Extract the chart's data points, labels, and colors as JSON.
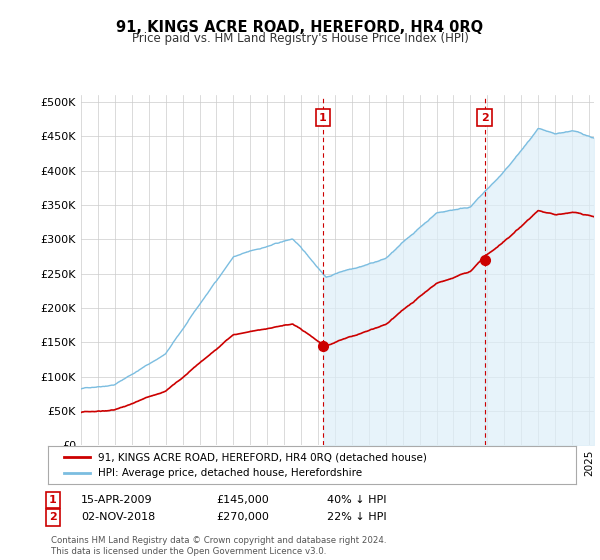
{
  "title": "91, KINGS ACRE ROAD, HEREFORD, HR4 0RQ",
  "subtitle": "Price paid vs. HM Land Registry's House Price Index (HPI)",
  "ylabel_ticks": [
    "£0",
    "£50K",
    "£100K",
    "£150K",
    "£200K",
    "£250K",
    "£300K",
    "£350K",
    "£400K",
    "£450K",
    "£500K"
  ],
  "ytick_values": [
    0,
    50000,
    100000,
    150000,
    200000,
    250000,
    300000,
    350000,
    400000,
    450000,
    500000
  ],
  "ylim": [
    0,
    510000
  ],
  "xlim_start": 1995.0,
  "xlim_end": 2025.3,
  "hpi_color": "#7bbde0",
  "hpi_fill_color": "#ddeef8",
  "price_color": "#cc0000",
  "annotation_color": "#cc0000",
  "sale1_x": 2009.29,
  "sale1_y": 145000,
  "sale1_label": "1",
  "sale2_x": 2018.84,
  "sale2_y": 270000,
  "sale2_label": "2",
  "legend_entry1": "91, KINGS ACRE ROAD, HEREFORD, HR4 0RQ (detached house)",
  "legend_entry2": "HPI: Average price, detached house, Herefordshire",
  "annotation1_date": "15-APR-2009",
  "annotation1_price": "£145,000",
  "annotation1_hpi": "40% ↓ HPI",
  "annotation2_date": "02-NOV-2018",
  "annotation2_price": "£270,000",
  "annotation2_hpi": "22% ↓ HPI",
  "footer": "Contains HM Land Registry data © Crown copyright and database right 2024.\nThis data is licensed under the Open Government Licence v3.0.",
  "background_color": "#ffffff",
  "grid_color": "#cccccc"
}
